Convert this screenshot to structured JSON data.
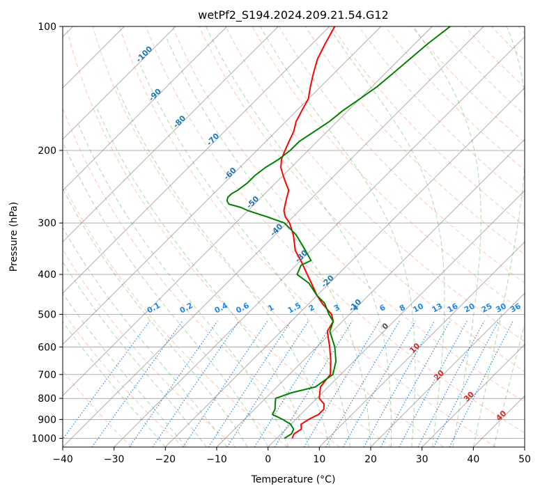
{
  "chart_data": {
    "type": "line",
    "title": "wetPf2_S194.2024.209.21.54.G12",
    "xlabel": "Temperature (°C)",
    "ylabel": "Pressure (hPa)",
    "xlim": [
      -40,
      50
    ],
    "ylim": [
      1050,
      100
    ],
    "y_scale": "log",
    "grid": true,
    "x_ticks": [
      "−40",
      "−30",
      "−20",
      "−10",
      "0",
      "10",
      "20",
      "30",
      "40",
      "50"
    ],
    "x_tick_values": [
      -40,
      -30,
      -20,
      -10,
      0,
      10,
      20,
      30,
      40,
      50
    ],
    "y_ticks": [
      "100",
      "200",
      "300",
      "400",
      "500",
      "600",
      "700",
      "800",
      "900",
      "1000"
    ],
    "y_tick_values": [
      100,
      200,
      300,
      400,
      500,
      600,
      700,
      800,
      900,
      1000
    ],
    "series": [
      {
        "color": "#ff0000",
        "pressure": [
          1000,
          975,
          950,
          925,
          900,
          875,
          850,
          825,
          800,
          775,
          750,
          700,
          650,
          600,
          550,
          520,
          500,
          470,
          450,
          420,
          400,
          370,
          350,
          320,
          300,
          290,
          280,
          270,
          260,
          250,
          240,
          230,
          220,
          210,
          200,
          190,
          180,
          170,
          160,
          150,
          140,
          130,
          120,
          110,
          100
        ],
        "values": [
          3,
          2.5,
          3,
          2,
          2.5,
          3.5,
          3.5,
          2.5,
          0.5,
          -0.5,
          -1.5,
          -2,
          -4.5,
          -7.5,
          -11,
          -11.8,
          -13.5,
          -17.5,
          -20,
          -23.5,
          -26,
          -30,
          -33,
          -36.5,
          -39.5,
          -41.5,
          -43,
          -44,
          -45,
          -46,
          -48,
          -50,
          -52,
          -53.5,
          -54.5,
          -55.5,
          -56.5,
          -58,
          -59,
          -60,
          -62,
          -64,
          -66,
          -67.5,
          -69
        ]
      },
      {
        "color": "#008000",
        "pressure": [
          1000,
          975,
          950,
          925,
          900,
          875,
          850,
          825,
          800,
          775,
          750,
          700,
          650,
          600,
          550,
          520,
          500,
          470,
          450,
          420,
          400,
          380,
          370,
          350,
          320,
          300,
          290,
          280,
          275,
          270,
          265,
          260,
          255,
          250,
          240,
          230,
          220,
          210,
          200,
          190,
          180,
          170,
          160,
          150,
          140,
          130,
          120,
          110,
          100
        ],
        "values": [
          1.5,
          2,
          1.5,
          0,
          -2.5,
          -5.5,
          -6,
          -7,
          -8,
          -6,
          -2.5,
          -1.5,
          -3.5,
          -6.5,
          -10.5,
          -11.8,
          -14,
          -17,
          -20,
          -24,
          -28,
          -29,
          -28,
          -31,
          -36,
          -40.5,
          -45,
          -50,
          -52,
          -55,
          -56,
          -56.5,
          -56.5,
          -56,
          -55.5,
          -55.5,
          -55,
          -54,
          -53.5,
          -53.5,
          -52.5,
          -51.5,
          -51,
          -50,
          -49,
          -48.5,
          -48,
          -47.5,
          -46.5
        ]
      }
    ],
    "dry_adiabat_labels": [
      "-100",
      "-90",
      "-80",
      "-70",
      "-60",
      "-50",
      "-40",
      "-30",
      "-20",
      "-10",
      "0",
      "10",
      "20",
      "30",
      "40"
    ],
    "mixing_ratio_labels": [
      "0.1",
      "0.2",
      "0.4",
      "0.6",
      "1",
      "1.5",
      "2",
      "3",
      "4",
      "6",
      "8",
      "10",
      "13",
      "16",
      "20",
      "25",
      "30",
      "36"
    ],
    "colors": {
      "temperature": "#ff0000",
      "dewpoint": "#008000",
      "dry_adiabat": "#ff7f50",
      "moist_adiabat": "#2ca02c",
      "mixing_ratio": "#1e88e5",
      "isotherm": "#7f7f7f",
      "isobar": "#7f7f7f",
      "axes_label_blue": "#1f77b4",
      "axes_label_red": "#d62728"
    }
  }
}
